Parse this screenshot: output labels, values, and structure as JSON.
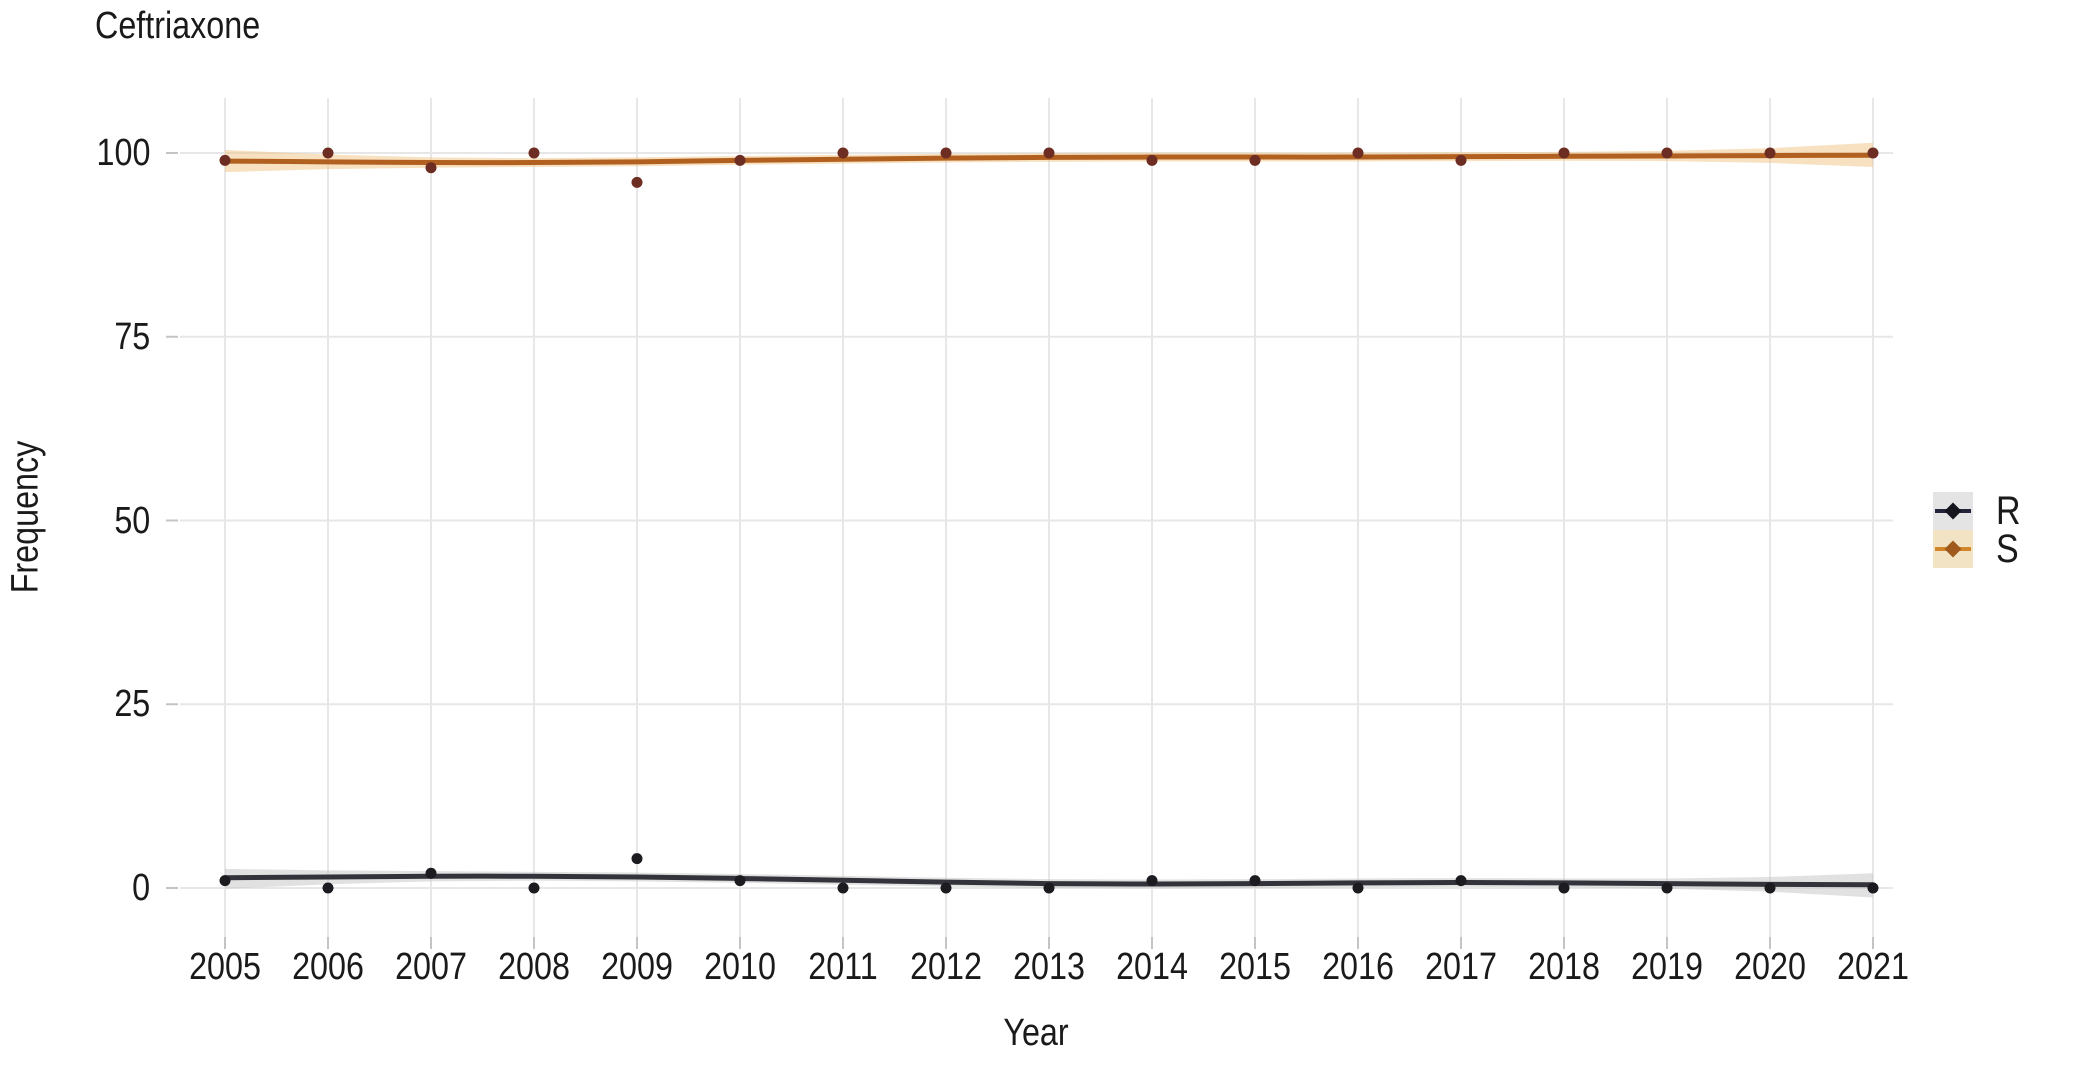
{
  "chart_data": {
    "type": "line",
    "title": "Ceftriaxone",
    "xlabel": "Year",
    "ylabel": "Frequency",
    "x": [
      2005,
      2006,
      2007,
      2008,
      2009,
      2010,
      2011,
      2012,
      2013,
      2014,
      2015,
      2016,
      2017,
      2018,
      2019,
      2020,
      2021
    ],
    "y_ticks": [
      0,
      25,
      50,
      75,
      100
    ],
    "ylim": [
      -7,
      108
    ],
    "grid": true,
    "legend_position": "right",
    "series": [
      {
        "name": "R",
        "values": [
          1,
          0,
          2,
          0,
          4,
          1,
          0,
          0,
          0,
          1,
          1,
          0,
          1,
          0,
          0,
          0,
          0
        ],
        "trend": [
          1.4,
          1.5,
          1.6,
          1.6,
          1.5,
          1.3,
          1.05,
          0.8,
          0.6,
          0.55,
          0.6,
          0.7,
          0.75,
          0.7,
          0.6,
          0.5,
          0.45
        ],
        "band_upper": [
          2.6,
          2.4,
          2.3,
          2.2,
          2.1,
          1.9,
          1.65,
          1.4,
          1.2,
          1.15,
          1.2,
          1.3,
          1.35,
          1.3,
          1.3,
          1.5,
          2.0
        ],
        "band_lower": [
          -0.1,
          0.5,
          0.9,
          1.0,
          0.9,
          0.7,
          0.45,
          0.2,
          0.0,
          -0.05,
          0.0,
          0.1,
          0.15,
          0.1,
          -0.1,
          -0.5,
          -1.3
        ],
        "line_color": "#33333b",
        "point_color": "#1b1b20",
        "band_color": "#c4c4c4",
        "legend_key_bg": "#e4e4e4",
        "legend_line_color": "#23233a",
        "legend_point_color": "#15151d"
      },
      {
        "name": "S",
        "values": [
          99,
          100,
          98,
          100,
          96,
          99,
          100,
          100,
          100,
          99,
          99,
          100,
          99,
          100,
          100,
          100,
          100
        ],
        "trend": [
          98.9,
          98.8,
          98.7,
          98.7,
          98.8,
          99.0,
          99.15,
          99.3,
          99.4,
          99.45,
          99.45,
          99.45,
          99.5,
          99.55,
          99.6,
          99.65,
          99.7
        ],
        "band_upper": [
          100.4,
          99.8,
          99.4,
          99.3,
          99.4,
          99.6,
          99.75,
          99.9,
          100.0,
          100.05,
          100.05,
          100.05,
          100.1,
          100.15,
          100.3,
          100.65,
          101.4
        ],
        "band_lower": [
          97.4,
          97.8,
          98.0,
          98.1,
          98.2,
          98.4,
          98.55,
          98.7,
          98.8,
          98.85,
          98.85,
          98.85,
          98.9,
          98.95,
          98.9,
          98.65,
          98.1
        ],
        "line_color": "#b2601f",
        "point_color": "#6d2d22",
        "band_color": "#f0c482",
        "legend_key_bg": "#f3e3c5",
        "legend_line_color": "#d2862c",
        "legend_point_color": "#a05a1e"
      }
    ],
    "colors": {
      "gridline": "#e7e7e7",
      "tick": "#c4c4c4",
      "text": "#1a1a1a",
      "background": "#ffffff"
    }
  }
}
